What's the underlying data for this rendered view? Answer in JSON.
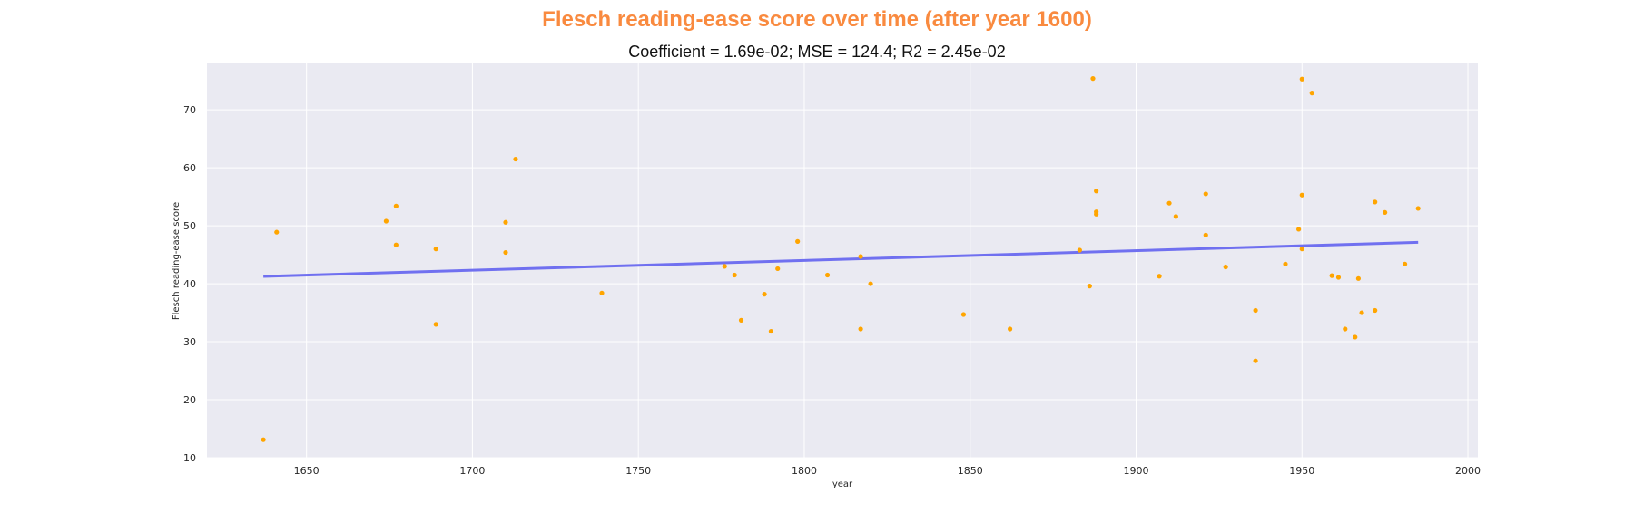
{
  "colors": {
    "suptitle": "#f98a3f",
    "plot_background": "#eaeaf2",
    "grid": "#ffffff",
    "points": "#ffa500",
    "regression_line": "#7070f0"
  },
  "chart_data": {
    "type": "scatter",
    "title": "Flesch reading-ease score over time (after year 1600)",
    "subtitle": "Coefficient = 1.69e-02; MSE = 124.4; R2 = 2.45e-02",
    "xlabel": "year",
    "ylabel": "Flesch reading-ease score",
    "xlim": [
      1620,
      2003
    ],
    "ylim": [
      10,
      78
    ],
    "xticks": [
      1650,
      1700,
      1750,
      1800,
      1850,
      1900,
      1950,
      2000
    ],
    "yticks": [
      10,
      20,
      30,
      40,
      50,
      60,
      70
    ],
    "grid": true,
    "series": [
      {
        "kind": "points",
        "x": [
          1637,
          1641,
          1674,
          1677,
          1677,
          1689,
          1689,
          1710,
          1710,
          1713,
          1739,
          1776,
          1779,
          1781,
          1788,
          1790,
          1792,
          1798,
          1807,
          1817,
          1817,
          1820,
          1848,
          1862,
          1883,
          1886,
          1887,
          1888,
          1888,
          1888,
          1907,
          1910,
          1912,
          1921,
          1921,
          1927,
          1936,
          1936,
          1945,
          1949,
          1950,
          1950,
          1950,
          1953,
          1959,
          1961,
          1963,
          1966,
          1967,
          1968,
          1972,
          1972,
          1975,
          1981,
          1985
        ],
        "y": [
          13.1,
          48.9,
          50.8,
          53.4,
          46.7,
          46.0,
          33.0,
          50.6,
          45.4,
          61.5,
          38.4,
          43.0,
          41.5,
          33.7,
          38.2,
          31.8,
          42.6,
          47.3,
          41.5,
          44.7,
          32.2,
          40.0,
          34.7,
          32.2,
          45.8,
          39.6,
          75.4,
          56.0,
          52.4,
          52.0,
          41.3,
          53.9,
          51.6,
          55.5,
          48.4,
          42.9,
          35.4,
          26.7,
          43.4,
          49.4,
          75.3,
          55.3,
          46.0,
          72.9,
          41.4,
          41.1,
          32.2,
          30.8,
          40.9,
          35.0,
          54.1,
          35.4,
          52.3,
          43.4,
          53.0
        ]
      },
      {
        "kind": "regression",
        "x_range": [
          1637,
          1985
        ],
        "intercept": 13.6,
        "coefficient": 0.0169
      }
    ]
  }
}
